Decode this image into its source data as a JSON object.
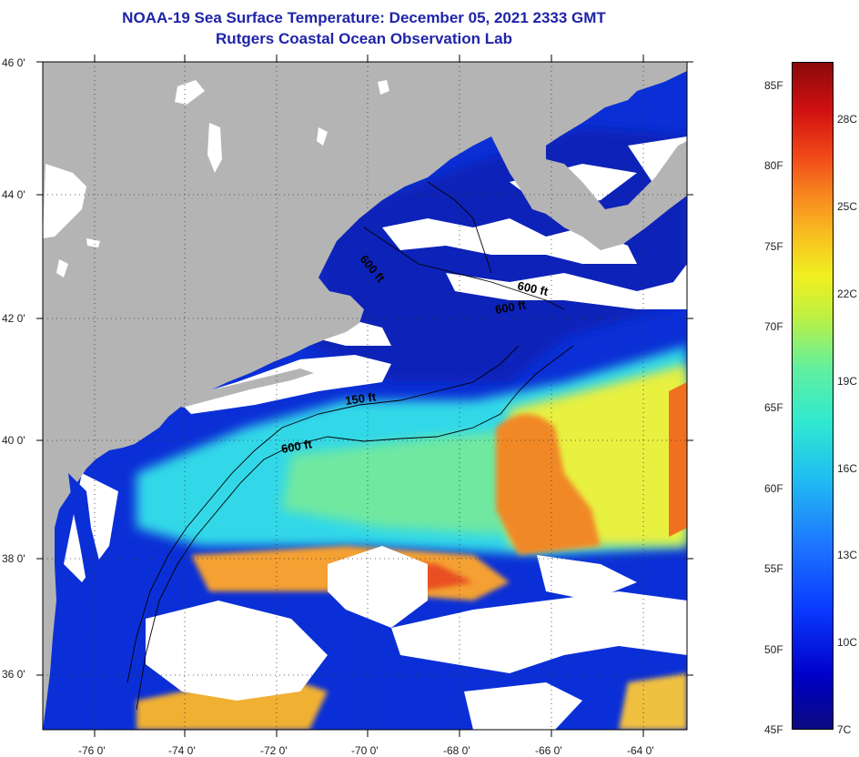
{
  "title": {
    "line1": "NOAA-19 Sea Surface Temperature:  December 05, 2021 2333 GMT",
    "line2": "Rutgers Coastal Ocean Observation Lab"
  },
  "map": {
    "lat_labels": [
      "46 0'",
      "44 0'",
      "42 0'",
      "40 0'",
      "38 0'",
      "36 0'"
    ],
    "lon_labels": [
      "-76 0'",
      "-74 0'",
      "-72 0'",
      "-70 0'",
      "-68 0'",
      "-66 0'",
      "-64 0'"
    ],
    "contour_labels": [
      "600 ft",
      "600 ft",
      "600 ft",
      "150 ft",
      "600 ft"
    ]
  },
  "colorbar": {
    "fahrenheit": [
      "85F",
      "80F",
      "75F",
      "70F",
      "65F",
      "60F",
      "55F",
      "50F",
      "45F"
    ],
    "celsius": [
      "28C",
      "25C",
      "22C",
      "19C",
      "16C",
      "13C",
      "10C",
      "7C"
    ]
  },
  "colors": {
    "land": "#b4b4b4",
    "cloud": "#ffffff",
    "cold": "#0b2fd6",
    "title": "#1f24a8"
  }
}
